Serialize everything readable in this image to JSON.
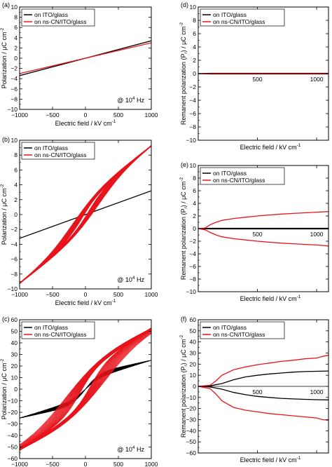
{
  "figure": {
    "colors": {
      "black": "#000000",
      "red": "#e8141c"
    },
    "legend_labels": [
      "on ITO/glass",
      "on ns-CN/ITO/glass"
    ],
    "freq_label_prefix": "@ 10",
    "freq_label_exp": "4",
    "freq_label_suffix": " Hz"
  },
  "chart_data": [
    {
      "panel": "(a)",
      "type": "line",
      "title": "",
      "xlabel": "Electric field / kV cm",
      "xlabel_sup": "-1",
      "ylabel": "Polarization / μC cm",
      "ylabel_sup": "-2",
      "xlim": [
        -1000,
        1000
      ],
      "ylim": [
        -10,
        10
      ],
      "xticks": [
        -1000,
        -500,
        0,
        500,
        1000
      ],
      "yticks": [
        -10,
        -8,
        -6,
        -4,
        -2,
        0,
        2,
        4,
        6,
        8,
        10
      ],
      "legend": "top-left",
      "annotation": "@ 10^4 Hz",
      "series": [
        {
          "name": "on ITO/glass",
          "color": "#000000",
          "loop": {
            "amp": 3.4,
            "coerc": 0,
            "spread": 0,
            "nloops": 1,
            "shape": "linear"
          }
        },
        {
          "name": "on ns-CN/ITO/glass",
          "color": "#e8141c",
          "loop": {
            "amp": 3.0,
            "coerc": 0,
            "spread": 0,
            "nloops": 1,
            "shape": "linear"
          }
        }
      ]
    },
    {
      "panel": "(b)",
      "type": "line",
      "title": "",
      "xlabel": "Electric field / kV cm",
      "xlabel_sup": "-1",
      "ylabel": "Polarization / μC cm",
      "ylabel_sup": "-2",
      "xlim": [
        -1000,
        1000
      ],
      "ylim": [
        -10,
        10
      ],
      "xticks": [
        -1000,
        -500,
        0,
        500,
        1000
      ],
      "yticks": [
        -10,
        -8,
        -6,
        -4,
        -2,
        0,
        2,
        4,
        6,
        8,
        10
      ],
      "legend": "top-left",
      "annotation": "@ 10^4 Hz",
      "series": [
        {
          "name": "on ITO/glass",
          "color": "#000000",
          "loop": {
            "amp": 3.2,
            "coerc": 0,
            "spread": 0,
            "nloops": 1,
            "shape": "linear"
          }
        },
        {
          "name": "on ns-CN/ITO/glass",
          "color": "#e8141c",
          "loop": {
            "amp": 9.3,
            "coerc": 40,
            "spread": 160,
            "nloops": 22,
            "shape": "ferro",
            "pr": 2.6
          }
        }
      ]
    },
    {
      "panel": "(c)",
      "type": "line",
      "title": "",
      "xlabel": "Electric field / kV cm",
      "xlabel_sup": "-1",
      "ylabel": "Polarization / μC cm",
      "ylabel_sup": "-2",
      "xlim": [
        -1000,
        1000
      ],
      "ylim": [
        -60,
        60
      ],
      "xticks": [
        -1000,
        -500,
        0,
        500,
        1000
      ],
      "yticks": [
        -60,
        -50,
        -40,
        -30,
        -20,
        -10,
        0,
        10,
        20,
        30,
        40,
        50,
        60
      ],
      "legend": "top-left",
      "annotation": "@ 10^4 Hz",
      "series": [
        {
          "name": "on ITO/glass",
          "color": "#000000",
          "loop": {
            "amp": 25,
            "coerc": 0,
            "spread": 0,
            "nloops": 26,
            "shape": "ferro",
            "pr": 13
          }
        },
        {
          "name": "on ns-CN/ITO/glass",
          "color": "#e8141c",
          "loop": {
            "amp": 53,
            "coerc": 80,
            "spread": 220,
            "nloops": 22,
            "shape": "ferro",
            "pr": 28
          }
        }
      ]
    },
    {
      "panel": "(d)",
      "type": "line",
      "title": "",
      "xlabel": "Electric field / kV cm",
      "xlabel_sup": "-1",
      "ylabel": "Remanent polarization (P",
      "ylabel_sub": "r",
      "ylabel_tail": ") / μC cm",
      "ylabel_sup": "-2",
      "xlim": [
        0,
        1100
      ],
      "ylim": [
        -10,
        10
      ],
      "xticks": [
        500,
        1000
      ],
      "yticks": [
        -10,
        -8,
        -6,
        -4,
        -2,
        0,
        2,
        4,
        6,
        8,
        10
      ],
      "legend": "top-left",
      "series": [
        {
          "name": "on ITO/glass",
          "color": "#000000",
          "x": [
            0,
            100,
            300,
            500,
            700,
            900,
            1100
          ],
          "pos": [
            0,
            0.05,
            0.05,
            0.05,
            0.05,
            0.05,
            0.05
          ],
          "neg": [
            0,
            -0.05,
            -0.05,
            -0.05,
            -0.05,
            -0.05,
            -0.05
          ]
        },
        {
          "name": "on ns-CN/ITO/glass",
          "color": "#e8141c",
          "x": [
            0,
            100,
            300,
            500,
            700,
            900,
            1100
          ],
          "pos": [
            0,
            0.02,
            0.02,
            0.02,
            0.02,
            0.02,
            0.02
          ],
          "neg": [
            0,
            -0.02,
            -0.02,
            -0.02,
            -0.02,
            -0.02,
            -0.02
          ]
        }
      ]
    },
    {
      "panel": "(e)",
      "type": "line",
      "title": "",
      "xlabel": "Electric field / kV cm",
      "xlabel_sup": "-1",
      "ylabel": "Remanent polarization (P",
      "ylabel_sub": "r",
      "ylabel_tail": ") / μC cm",
      "ylabel_sup": "-2",
      "xlim": [
        0,
        1100
      ],
      "ylim": [
        -10,
        10
      ],
      "xticks": [
        500,
        1000
      ],
      "yticks": [
        -10,
        -8,
        -6,
        -4,
        -2,
        0,
        2,
        4,
        6,
        8,
        10
      ],
      "legend": "top-left",
      "series": [
        {
          "name": "on ITO/glass",
          "color": "#000000",
          "x": [
            0,
            100,
            200,
            300,
            500,
            700,
            900,
            1100
          ],
          "pos": [
            0,
            0.05,
            0.05,
            0.05,
            0.05,
            0.05,
            0.05,
            0.05
          ],
          "neg": [
            0,
            -0.05,
            -0.05,
            -0.05,
            -0.05,
            -0.05,
            -0.05,
            -0.05
          ]
        },
        {
          "name": "on ns-CN/ITO/glass",
          "color": "#e8141c",
          "x": [
            0,
            60,
            100,
            150,
            200,
            300,
            400,
            500,
            600,
            700,
            800,
            900,
            1000,
            1100
          ],
          "pos": [
            0,
            0.1,
            0.6,
            1.0,
            1.3,
            1.6,
            1.8,
            2.0,
            2.15,
            2.3,
            2.4,
            2.5,
            2.6,
            2.7
          ],
          "neg": [
            0,
            -0.2,
            -0.6,
            -1.0,
            -1.3,
            -1.6,
            -1.8,
            -2.0,
            -2.15,
            -2.3,
            -2.4,
            -2.5,
            -2.6,
            -2.75
          ]
        }
      ]
    },
    {
      "panel": "(f)",
      "type": "line",
      "title": "",
      "xlabel": "Electric field / kV cm",
      "xlabel_sup": "-1",
      "ylabel": "Remanent polarization (P",
      "ylabel_sub": "r",
      "ylabel_tail": ") / μC cm",
      "ylabel_sup": "-2",
      "xlim": [
        0,
        1100
      ],
      "ylim": [
        -60,
        60
      ],
      "xticks": [
        500,
        1000
      ],
      "yticks": [
        -60,
        -50,
        -40,
        -30,
        -20,
        -10,
        0,
        10,
        20,
        30,
        40,
        50,
        60
      ],
      "legend": "top-left",
      "series": [
        {
          "name": "on ITO/glass",
          "color": "#000000",
          "x": [
            0,
            100,
            200,
            300,
            400,
            500,
            600,
            700,
            800,
            900,
            1000,
            1100
          ],
          "pos": [
            0,
            0.5,
            2.5,
            6,
            8.5,
            10,
            11.2,
            12,
            12.8,
            13.3,
            13.6,
            13.8
          ],
          "neg": [
            0,
            -0.5,
            -2.5,
            -5.5,
            -7.5,
            -9,
            -10,
            -10.8,
            -11.3,
            -11.7,
            -12,
            -12.2
          ]
        },
        {
          "name": "on ns-CN/ITO/glass",
          "color": "#e8141c",
          "x": [
            0,
            100,
            150,
            200,
            300,
            400,
            500,
            600,
            700,
            800,
            900,
            1000,
            1050,
            1100
          ],
          "pos": [
            0,
            1,
            5,
            10,
            15,
            17.5,
            19.5,
            21,
            22.5,
            23.5,
            24.8,
            25.5,
            27,
            28
          ],
          "neg": [
            0,
            -2,
            -7,
            -13,
            -19,
            -21.5,
            -23,
            -24.5,
            -25.5,
            -26.5,
            -27.5,
            -28.5,
            -30,
            -30.5
          ]
        }
      ]
    }
  ]
}
